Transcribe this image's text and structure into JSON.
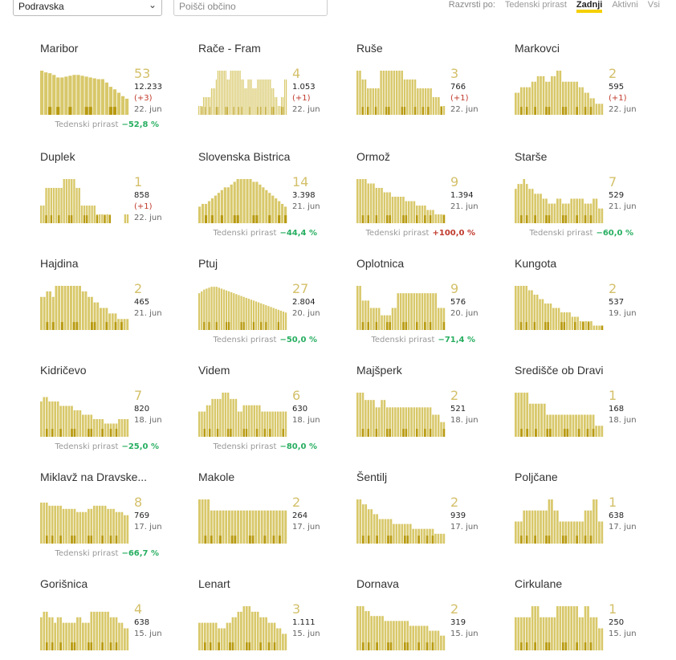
{
  "toolbar": {
    "region": "Podravska",
    "search_placeholder": "Poišči občino",
    "sort_label": "Razvrsti po:",
    "sort_options": [
      "Tedenski prirast",
      "Zadnji",
      "Aktivni",
      "Vsi"
    ],
    "active_sort": "Zadnji"
  },
  "colors": {
    "bar": "#d8c86a",
    "bar_dark": "#b89a10",
    "accent": "#f5d000",
    "down": "#27ae60",
    "up": "#c0392b"
  },
  "weekly_label": "Tedenski prirast",
  "municipalities": [
    {
      "name": "Maribor",
      "active": "53",
      "total": "12.233",
      "delta": "(+3)",
      "date": "22. jun",
      "weekly": "−52,8 %",
      "trend": "down",
      "bars": [
        52,
        50,
        49,
        47,
        44,
        44,
        45,
        46,
        47,
        47,
        46,
        45,
        44,
        43,
        42,
        42,
        38,
        33,
        30,
        26,
        22,
        19
      ]
    },
    {
      "name": "Rače - Fram",
      "active": "4",
      "total": "1.053",
      "delta": "(+1)",
      "date": "22. jun",
      "weekly": "",
      "trend": "",
      "bars": [
        1,
        1,
        1,
        2,
        2,
        2,
        2,
        2,
        3,
        3,
        3,
        4,
        5,
        5,
        5,
        5,
        5,
        5,
        4,
        4,
        5,
        5,
        5,
        5,
        5,
        5,
        5,
        4,
        4,
        3,
        3,
        4,
        4,
        4,
        3,
        3,
        3,
        4,
        4,
        4,
        4,
        4,
        4,
        4,
        4,
        4,
        3,
        3,
        2,
        2,
        1,
        1,
        2,
        2,
        4,
        4
      ],
      "barsMax": 5
    },
    {
      "name": "Ruše",
      "active": "3",
      "total": "766",
      "delta": "(+1)",
      "date": "22. jun",
      "weekly": "",
      "trend": "",
      "bars": [
        5,
        5,
        4,
        4,
        3,
        3,
        3,
        3,
        3,
        5,
        5,
        5,
        5,
        5,
        5,
        5,
        5,
        5,
        4,
        4,
        4,
        4,
        4,
        3,
        3,
        3,
        3,
        3,
        3,
        2,
        2,
        2,
        1,
        1
      ],
      "barsMax": 5
    },
    {
      "name": "Markovci",
      "active": "2",
      "total": "595",
      "delta": "(+1)",
      "date": "22. jun",
      "weekly": "",
      "trend": "",
      "bars": [
        4,
        4,
        5,
        5,
        5,
        5,
        6,
        6,
        7,
        7,
        7,
        6,
        6,
        7,
        7,
        8,
        8,
        6,
        6,
        6,
        6,
        6,
        6,
        5,
        5,
        4,
        4,
        3,
        3,
        2,
        2,
        2
      ],
      "barsMax": 8
    },
    {
      "name": "Duplek",
      "active": "1",
      "total": "858",
      "delta": "(+1)",
      "date": "22. jun",
      "weekly": "",
      "trend": "",
      "bars": [
        2,
        2,
        4,
        4,
        4,
        4,
        4,
        4,
        4,
        5,
        5,
        5,
        5,
        5,
        4,
        4,
        2,
        2,
        2,
        2,
        2,
        2,
        1,
        1,
        1,
        1,
        1,
        1,
        0,
        0,
        0,
        0,
        0,
        1,
        1
      ],
      "barsMax": 5
    },
    {
      "name": "Slovenska Bistrica",
      "active": "14",
      "total": "3.398",
      "delta": "",
      "date": "21. jun",
      "weekly": "−44,4 %",
      "trend": "down",
      "bars": [
        6,
        7,
        7,
        8,
        9,
        10,
        11,
        12,
        13,
        13,
        14,
        15,
        16,
        16,
        16,
        16,
        16,
        15,
        15,
        14,
        13,
        12,
        11,
        10,
        9,
        8,
        7,
        6
      ],
      "barsMax": 16
    },
    {
      "name": "Ormož",
      "active": "9",
      "total": "1.394",
      "delta": "",
      "date": "21. jun",
      "weekly": "+100,0 %",
      "trend": "up",
      "bars": [
        10,
        10,
        10,
        10,
        9,
        9,
        9,
        8,
        8,
        8,
        7,
        7,
        7,
        6,
        6,
        6,
        6,
        6,
        5,
        5,
        5,
        5,
        4,
        4,
        4,
        4,
        3,
        3,
        3,
        2,
        2,
        2,
        2
      ],
      "barsMax": 10
    },
    {
      "name": "Starše",
      "active": "7",
      "total": "529",
      "delta": "",
      "date": "21. jun",
      "weekly": "−60,0 %",
      "trend": "down",
      "bars": [
        7,
        8,
        8,
        9,
        8,
        7,
        7,
        6,
        6,
        6,
        5,
        5,
        4,
        4,
        4,
        5,
        5,
        4,
        4,
        4,
        5,
        5,
        5,
        5,
        5,
        4,
        4,
        4,
        5,
        5,
        3,
        3
      ],
      "barsMax": 9
    },
    {
      "name": "Hajdina",
      "active": "2",
      "total": "465",
      "delta": "",
      "date": "21. jun",
      "weekly": "",
      "trend": "",
      "bars": [
        6,
        6,
        7,
        7,
        6,
        8,
        8,
        8,
        8,
        8,
        8,
        8,
        8,
        8,
        7,
        7,
        6,
        6,
        5,
        5,
        4,
        4,
        4,
        3,
        3,
        3,
        2,
        2,
        2,
        2
      ],
      "barsMax": 8
    },
    {
      "name": "Ptuj",
      "active": "27",
      "total": "2.804",
      "delta": "",
      "date": "20. jun",
      "weekly": "−50,0 %",
      "trend": "down",
      "bars": [
        40,
        42,
        44,
        45,
        46,
        47,
        47,
        47,
        46,
        45,
        44,
        43,
        42,
        41,
        40,
        39,
        38,
        37,
        36,
        35,
        34,
        33,
        32,
        31,
        30,
        29,
        28,
        27,
        26,
        25,
        24,
        23,
        22,
        21,
        20,
        19
      ],
      "barsMax": 48
    },
    {
      "name": "Oplotnica",
      "active": "9",
      "total": "576",
      "delta": "",
      "date": "20. jun",
      "weekly": "−71,4 %",
      "trend": "down",
      "bars": [
        6,
        6,
        4,
        4,
        4,
        3,
        3,
        3,
        3,
        2,
        2,
        2,
        2,
        3,
        3,
        5,
        5,
        5,
        5,
        5,
        5,
        5,
        5,
        5,
        5,
        5,
        5,
        5,
        5,
        5,
        3,
        3,
        3
      ],
      "barsMax": 6
    },
    {
      "name": "Kungota",
      "active": "2",
      "total": "537",
      "delta": "",
      "date": "19. jun",
      "weekly": "",
      "trend": "",
      "bars": [
        10,
        10,
        10,
        10,
        10,
        9,
        9,
        8,
        8,
        7,
        7,
        6,
        6,
        6,
        5,
        5,
        5,
        4,
        4,
        4,
        4,
        3,
        3,
        3,
        2,
        2,
        2,
        2,
        2,
        1,
        1,
        1,
        1
      ],
      "barsMax": 10
    },
    {
      "name": "Kidričevo",
      "active": "7",
      "total": "820",
      "delta": "",
      "date": "18. jun",
      "weekly": "−25,0 %",
      "trend": "down",
      "bars": [
        8,
        9,
        9,
        8,
        8,
        8,
        8,
        7,
        7,
        7,
        7,
        7,
        6,
        6,
        6,
        5,
        5,
        5,
        5,
        4,
        4,
        4,
        4,
        3,
        3,
        3,
        3,
        3,
        4,
        4,
        4,
        4
      ],
      "barsMax": 10
    },
    {
      "name": "Videm",
      "active": "6",
      "total": "630",
      "delta": "",
      "date": "18. jun",
      "weekly": "−80,0 %",
      "trend": "down",
      "bars": [
        4,
        4,
        4,
        5,
        5,
        6,
        6,
        6,
        6,
        7,
        7,
        7,
        6,
        6,
        6,
        4,
        4,
        5,
        5,
        5,
        5,
        5,
        5,
        5,
        4,
        4,
        4,
        4,
        4,
        4,
        4,
        4,
        4,
        4
      ],
      "barsMax": 7
    },
    {
      "name": "Majšperk",
      "active": "2",
      "total": "521",
      "delta": "",
      "date": "18. jun",
      "weekly": "",
      "trend": "",
      "bars": [
        6,
        6,
        6,
        5,
        5,
        5,
        5,
        4,
        4,
        5,
        5,
        4,
        4,
        4,
        4,
        4,
        4,
        4,
        4,
        4,
        4,
        4,
        4,
        4,
        4,
        4,
        4,
        4,
        3,
        3,
        3,
        2,
        2
      ],
      "barsMax": 6
    },
    {
      "name": "Središče ob Dravi",
      "active": "1",
      "total": "168",
      "delta": "",
      "date": "18. jun",
      "weekly": "",
      "trend": "",
      "bars": [
        4,
        4,
        4,
        4,
        4,
        3,
        3,
        3,
        3,
        3,
        3,
        2,
        2,
        2,
        2,
        2,
        2,
        2,
        2,
        2,
        2,
        2,
        2,
        2,
        2,
        2,
        2,
        2,
        1,
        1,
        1
      ],
      "barsMax": 4
    },
    {
      "name": "Miklavž na Dravske...",
      "active": "8",
      "total": "769",
      "delta": "",
      "date": "17. jun",
      "weekly": "−66,7 %",
      "trend": "down",
      "bars": [
        13,
        13,
        13,
        12,
        12,
        12,
        12,
        12,
        11,
        11,
        11,
        11,
        11,
        10,
        10,
        10,
        10,
        11,
        11,
        12,
        12,
        12,
        12,
        12,
        11,
        11,
        11,
        10,
        10,
        10,
        9,
        9
      ],
      "barsMax": 14
    },
    {
      "name": "Makole",
      "active": "2",
      "total": "264",
      "delta": "",
      "date": "17. jun",
      "weekly": "",
      "trend": "",
      "bars": [
        4,
        4,
        4,
        4,
        3,
        3,
        3,
        3,
        3,
        3,
        3,
        3,
        3,
        3,
        3,
        3,
        3,
        3,
        3,
        3,
        3,
        3,
        3,
        3,
        3,
        3,
        3,
        3,
        3,
        3
      ],
      "barsMax": 4
    },
    {
      "name": "Šentilj",
      "active": "2",
      "total": "939",
      "delta": "",
      "date": "17. jun",
      "weekly": "",
      "trend": "",
      "bars": [
        9,
        9,
        8,
        8,
        7,
        7,
        6,
        6,
        5,
        5,
        5,
        5,
        5,
        4,
        4,
        4,
        4,
        4,
        4,
        4,
        3,
        3,
        3,
        3,
        3,
        3,
        3,
        3,
        2,
        2,
        2,
        2
      ],
      "barsMax": 9
    },
    {
      "name": "Poljčane",
      "active": "1",
      "total": "638",
      "delta": "",
      "date": "17. jun",
      "weekly": "",
      "trend": "",
      "bars": [
        2,
        2,
        2,
        3,
        3,
        3,
        3,
        3,
        3,
        3,
        3,
        3,
        4,
        4,
        3,
        3,
        2,
        2,
        2,
        2,
        2,
        2,
        2,
        2,
        2,
        3,
        3,
        3,
        4,
        4,
        2,
        2
      ],
      "barsMax": 4
    },
    {
      "name": "Gorišnica",
      "active": "4",
      "total": "638",
      "delta": "",
      "date": "15. jun",
      "weekly": "",
      "trend": "",
      "bars": [
        6,
        7,
        7,
        6,
        6,
        5,
        6,
        6,
        5,
        5,
        5,
        5,
        5,
        6,
        6,
        5,
        5,
        5,
        7,
        7,
        7,
        7,
        7,
        7,
        7,
        6,
        6,
        6,
        5,
        5,
        4,
        4
      ],
      "barsMax": 8
    },
    {
      "name": "Lenart",
      "active": "3",
      "total": "1.111",
      "delta": "",
      "date": "15. jun",
      "weekly": "",
      "trend": "",
      "bars": [
        5,
        5,
        5,
        5,
        5,
        5,
        5,
        4,
        4,
        4,
        5,
        5,
        6,
        6,
        7,
        7,
        8,
        8,
        8,
        7,
        7,
        7,
        6,
        6,
        6,
        5,
        5,
        5,
        4,
        4,
        3,
        3
      ],
      "barsMax": 8
    },
    {
      "name": "Dornava",
      "active": "2",
      "total": "319",
      "delta": "",
      "date": "15. jun",
      "weekly": "",
      "trend": "",
      "bars": [
        9,
        9,
        9,
        8,
        8,
        7,
        7,
        7,
        7,
        7,
        6,
        6,
        6,
        6,
        6,
        6,
        6,
        6,
        6,
        5,
        5,
        5,
        5,
        5,
        5,
        5,
        4,
        4,
        4,
        4,
        3,
        3
      ],
      "barsMax": 9
    },
    {
      "name": "Cirkulane",
      "active": "1",
      "total": "250",
      "delta": "",
      "date": "15. jun",
      "weekly": "",
      "trend": "",
      "bars": [
        3,
        3,
        3,
        3,
        3,
        3,
        4,
        4,
        4,
        3,
        3,
        3,
        3,
        3,
        3,
        4,
        4,
        4,
        4,
        4,
        4,
        4,
        4,
        3,
        3,
        4,
        4,
        3,
        3,
        3,
        2,
        2
      ],
      "barsMax": 4
    }
  ]
}
